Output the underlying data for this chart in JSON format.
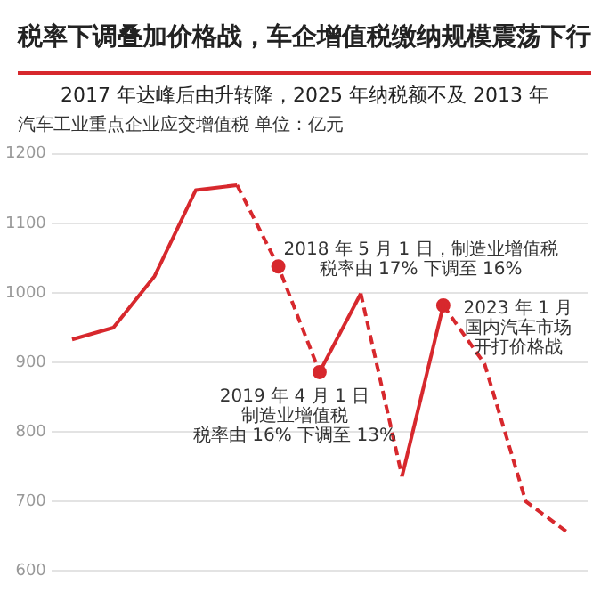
{
  "chart_data": {
    "type": "line",
    "title": "税率下调叠加价格战，车企增值税缴纳规模震荡下行",
    "subtitle": "2017 年达峰后由升转降，2025 年纳税额不及 2013 年",
    "ylabel": "汽车工业重点企业应交增值税  单位：亿元",
    "categories": [
      null,
      null,
      null,
      null,
      null,
      null,
      null,
      null,
      null,
      null,
      null,
      null,
      null
    ],
    "series": [
      {
        "type": "line",
        "color": "#d7282d",
        "line_style": "solid",
        "values": [
          933,
          950,
          1024,
          1148,
          1155,
          null,
          null,
          null,
          null,
          null,
          null,
          null,
          null
        ]
      },
      {
        "type": "line",
        "color": "#d7282d",
        "line_style": "dashed",
        "values": [
          null,
          null,
          null,
          null,
          1155,
          1038,
          886,
          null,
          null,
          null,
          null,
          null,
          null
        ]
      },
      {
        "type": "line",
        "color": "#d7282d",
        "line_style": "solid",
        "values": [
          null,
          null,
          null,
          null,
          null,
          null,
          886,
          999,
          null,
          null,
          null,
          null,
          null
        ]
      },
      {
        "type": "line",
        "color": "#d7282d",
        "line_style": "dashed",
        "values": [
          null,
          null,
          null,
          null,
          null,
          null,
          null,
          999,
          736,
          null,
          null,
          null,
          null
        ]
      },
      {
        "type": "line",
        "color": "#d7282d",
        "line_style": "solid",
        "values": [
          null,
          null,
          null,
          null,
          null,
          null,
          null,
          null,
          736,
          982,
          null,
          null,
          null
        ]
      },
      {
        "type": "line",
        "color": "#d7282d",
        "line_style": "dashed",
        "values": [
          null,
          null,
          null,
          null,
          null,
          null,
          null,
          null,
          null,
          982,
          898,
          700,
          656
        ]
      },
      {
        "type": "scatter",
        "color": "#d7282d",
        "marker": "circle",
        "values": [
          null,
          null,
          null,
          null,
          null,
          1038,
          886,
          null,
          null,
          982,
          null,
          null,
          null
        ]
      }
    ],
    "annotations": [
      "2018 年 5 月 1 日，制造业增值税税率由 17% 下调至 16%",
      "2019 年 4 月 1 日制造业增值税税率由 16% 下调至 13%",
      "2023 年 1 月国内汽车市场开打价格战"
    ],
    "ylim": [
      600,
      1200
    ],
    "yticks": [
      600,
      700,
      800,
      900,
      1000,
      1100,
      1200
    ],
    "grid": "y",
    "legend": false
  }
}
